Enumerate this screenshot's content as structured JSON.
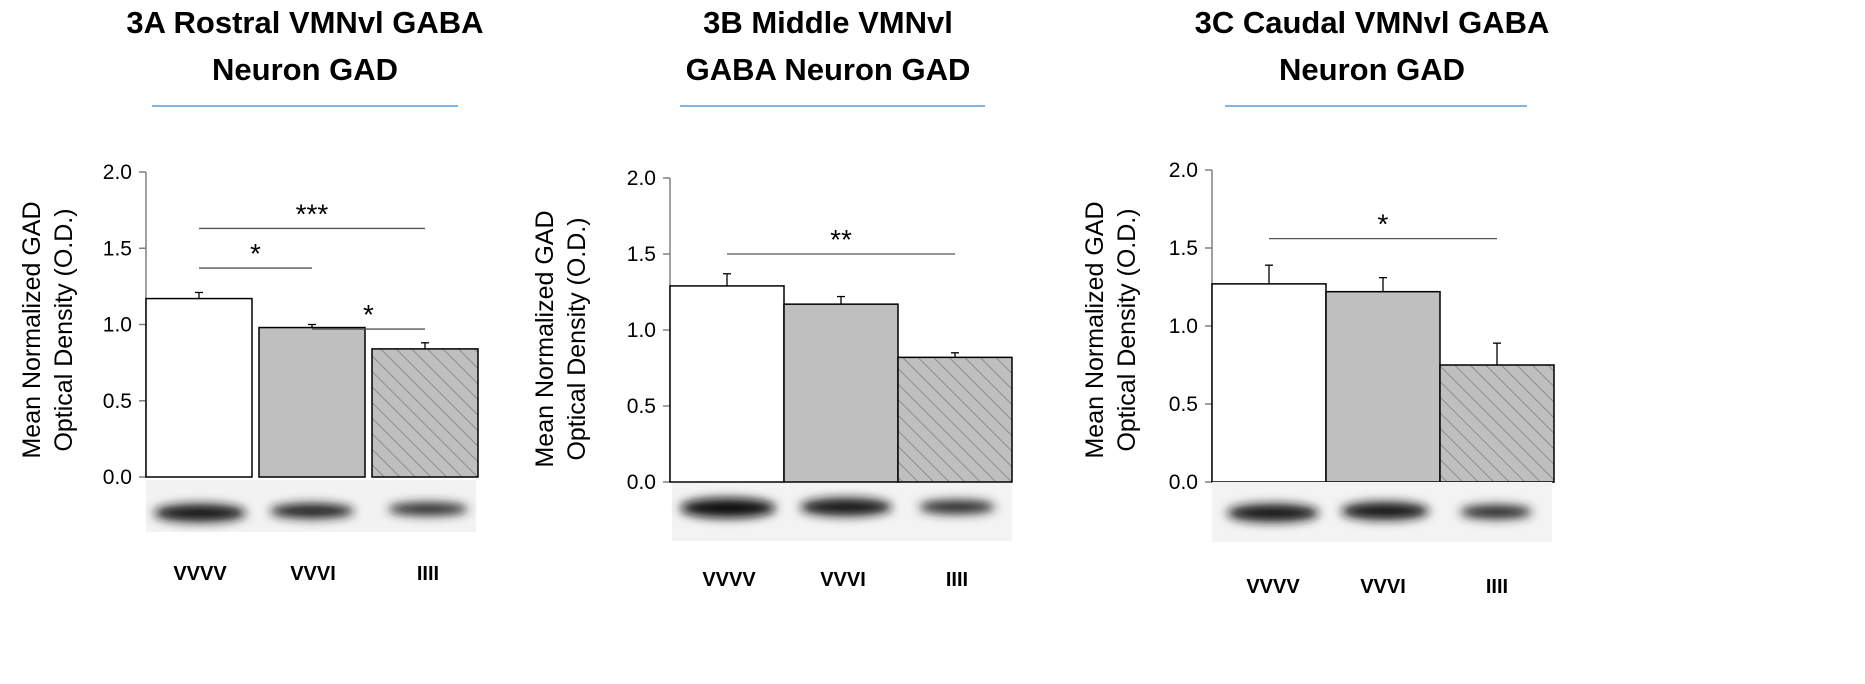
{
  "figure": {
    "panels": [
      {
        "title_lines": [
          "3A  Rostral VMNvl GABA",
          "Neuron GAD"
        ]
      },
      {
        "title_lines": [
          "3B  Middle VMNvl",
          "GABA Neuron GAD"
        ]
      },
      {
        "title_lines": [
          "3C  Caudal VMNvl GABA",
          "Neuron GAD"
        ]
      }
    ]
  },
  "colors": {
    "title_rule": "#5b9bd5",
    "axis": "#808080",
    "bar_outline": "#000000",
    "bar_fill_VVVV": "#ffffff",
    "bar_fill_VVVI": "#bfbfbf",
    "bar_fill_IIII": "#bfbfbf",
    "hatch": "#808080"
  },
  "chart_data": [
    {
      "type": "bar",
      "ylabel_lines": [
        "Mean Normalized GAD",
        "Optical Density (O.D.)"
      ],
      "ylim": [
        0,
        2.0
      ],
      "yticks": [
        "0.0",
        "0.5",
        "1.0",
        "1.5",
        "2.0"
      ],
      "categories": [
        "VVVV",
        "VVVI",
        "IIII"
      ],
      "fill_patterns": [
        "white",
        "gray",
        "hatched"
      ],
      "values": [
        1.17,
        0.98,
        0.84
      ],
      "errors": [
        0.04,
        0.02,
        0.04
      ],
      "significance": [
        {
          "from": 0,
          "to": 2,
          "label": "***",
          "y": 1.63
        },
        {
          "from": 0,
          "to": 1,
          "label": "*",
          "y": 1.37
        },
        {
          "from": 1,
          "to": 2,
          "label": "*",
          "y": 0.97
        }
      ]
    },
    {
      "type": "bar",
      "ylabel_lines": [
        "Mean Normalized GAD",
        "Optical Density (O.D.)"
      ],
      "ylim": [
        0,
        2.0
      ],
      "yticks": [
        "0.0",
        "0.5",
        "1.0",
        "1.5",
        "2.0"
      ],
      "categories": [
        "VVVV",
        "VVVI",
        "IIII"
      ],
      "fill_patterns": [
        "white",
        "gray",
        "hatched"
      ],
      "values": [
        1.29,
        1.17,
        0.82
      ],
      "errors": [
        0.08,
        0.05,
        0.03
      ],
      "significance": [
        {
          "from": 0,
          "to": 2,
          "label": "**",
          "y": 1.5
        }
      ]
    },
    {
      "type": "bar",
      "ylabel_lines": [
        "Mean Normalized GAD",
        "Optical Density (O.D.)"
      ],
      "ylim": [
        0,
        2.0
      ],
      "yticks": [
        "0.0",
        "0.5",
        "1.0",
        "1.5",
        "2.0"
      ],
      "categories": [
        "VVVV",
        "VVVI",
        "IIII"
      ],
      "fill_patterns": [
        "white",
        "gray",
        "hatched"
      ],
      "values": [
        1.27,
        1.22,
        0.75
      ],
      "errors": [
        0.12,
        0.09,
        0.14
      ],
      "significance": [
        {
          "from": 0,
          "to": 2,
          "label": "*",
          "y": 1.56
        }
      ]
    }
  ]
}
